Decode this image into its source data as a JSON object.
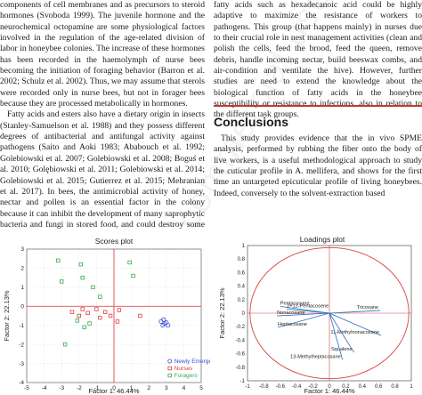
{
  "left_column": {
    "paragraphs": [
      "components of cell membranes and as precursors to steroid hormones (Svoboda 1999). The juvenile hormone and the neurochemical octopamine are some physiological factors involved in the regulation of the age-related division of labor in honeybee colonies. The increase of these hormones has been recorded in the haemolymph of nurse bees becoming the initiation of foraging behavior (Barron et al. 2002; Schulz et al. 2002). Thus, we may assume that sterols were recorded only in nurse bees, but not in forager bees because they are processed metabolically in hormones.",
      "Fatty acids and esters also have a dietary origin in insects (Stanley-Samuelson et al. 1988) and they possess different degrees of antibacterial and antifungal activity against pathogens (Saito and Aoki 1983; Ababouch et al. 1992; Golebiowski et al. 2007; Golebiowski et al. 2008; Boguś et al. 2010; Golębiowski et al. 2011; Golebiowski et al. 2014; Golebiowski et al. 2015; Gutierrez et al. 2015; Mehranian et al. 2017). In bees, the antimicrobial activity of honey, nectar and pollen is an essential factor in the colony because it can inhibit the development of many saprophytic bacteria and fungi in stored food, and could destroy some patho-"
    ]
  },
  "right_column": {
    "paragraphs_top": [
      "fatty acids such as hexadecanoic acid could be highly adaptive to maximize the resistance of workers to pathogens. This group (that happens mainly) in nurses due to their crucial role in nest management activities (clean and polish the cells, feed the brood, feed the queen, remove debris, handle incoming nectar, build beeswax combs, and air-condition and ventilate the hive). However, further studies are need to extend the knowledge about the biological function of fatty acids in the honeybee susceptibility or resistance to infections, also in relation to the different task groups."
    ],
    "section_title": "Conclusions",
    "paragraphs_bottom": [
      "This study provides evidence that the in vivo SPME analysis, performed by rubbing the fiber onto the body of live workers, is a useful methodological approach to study the cuticular profile in A. mellifera, and shows for the first time an untargeted epicuticular profile of living honeybees. Indeed, conversely to the solvent-extraction based"
    ]
  },
  "watermark": "Non-commercial use",
  "scores_plot": {
    "title": "Scores plot",
    "xlabel": "Factor 1: 46.44%",
    "ylabel": "Factor 2: 22.13%",
    "xlim": [
      -5,
      5
    ],
    "ylim": [
      -4,
      3
    ],
    "xticks": [
      -5,
      -4,
      -3,
      -2,
      -1,
      0,
      1,
      2,
      3,
      4,
      5
    ],
    "yticks": [
      -4,
      -3,
      -2,
      -1,
      0,
      1,
      2,
      3
    ],
    "legend": [
      {
        "name": "Newly Emerged",
        "color": "#3a4fd0",
        "marker": "circle"
      },
      {
        "name": "Nurses",
        "color": "#d94040",
        "marker": "square"
      },
      {
        "name": "Foragers",
        "color": "#3aa84a",
        "marker": "square"
      }
    ],
    "series": [
      {
        "name": "Newly Emerged",
        "points": [
          [
            2.7,
            -0.8
          ],
          [
            2.8,
            -1.0
          ],
          [
            2.9,
            -0.9
          ],
          [
            3.0,
            -0.85
          ],
          [
            3.1,
            -1.0
          ],
          [
            2.85,
            -0.7
          ]
        ]
      },
      {
        "name": "Nurses",
        "points": [
          [
            -2.4,
            -0.3
          ],
          [
            -2.0,
            -0.5
          ],
          [
            -1.5,
            -0.35
          ],
          [
            -1.0,
            -0.15
          ],
          [
            -0.5,
            -0.3
          ],
          [
            -0.2,
            -0.5
          ],
          [
            0.2,
            -0.8
          ],
          [
            0.3,
            -0.2
          ],
          [
            1.5,
            -0.5
          ],
          [
            -0.8,
            -0.6
          ],
          [
            -1.8,
            -0.15
          ]
        ]
      },
      {
        "name": "Foragers",
        "points": [
          [
            -3.2,
            2.4
          ],
          [
            -1.9,
            2.2
          ],
          [
            -1.8,
            1.5
          ],
          [
            -3.0,
            1.3
          ],
          [
            -1.2,
            1.0
          ],
          [
            -0.8,
            0.5
          ],
          [
            1.1,
            1.6
          ],
          [
            0.9,
            2.3
          ],
          [
            -1.4,
            -0.9
          ],
          [
            -2.1,
            -0.75
          ],
          [
            -2.8,
            -2.0
          ],
          [
            -1.7,
            -1.1
          ]
        ]
      }
    ]
  },
  "loadings_plot": {
    "title": "Loadings plot",
    "xlabel": "Factor 1: 46.44%",
    "ylabel": "Factor 2: 22.13%",
    "xlim": [
      -1,
      1
    ],
    "ylim": [
      -1,
      1
    ],
    "xticks": [
      -1,
      -0.8,
      -0.6,
      -0.4,
      -0.2,
      0,
      0.2,
      0.4,
      0.6,
      0.8,
      1
    ],
    "yticks": [
      -1,
      -0.8,
      -0.6,
      -0.4,
      -0.2,
      0,
      0.2,
      0.4,
      0.6,
      0.8,
      1
    ],
    "vectors": [
      {
        "name": "Pentacosane",
        "x": -0.6,
        "y": 0.1
      },
      {
        "name": "2+12-Pentacosene",
        "x": -0.52,
        "y": 0.06
      },
      {
        "name": "Nonacosane",
        "x": -0.64,
        "y": -0.04
      },
      {
        "name": "Heptacosane",
        "x": -0.63,
        "y": -0.21
      },
      {
        "name": "Tricosane",
        "x": 0.62,
        "y": 0.04
      },
      {
        "name": "11-Methylnonacosane",
        "x": 0.63,
        "y": -0.33
      },
      {
        "name": "Squalene",
        "x": 0.3,
        "y": -0.58
      },
      {
        "name": "13-Methylheptacosane",
        "x": 0.16,
        "y": -0.69
      }
    ]
  }
}
